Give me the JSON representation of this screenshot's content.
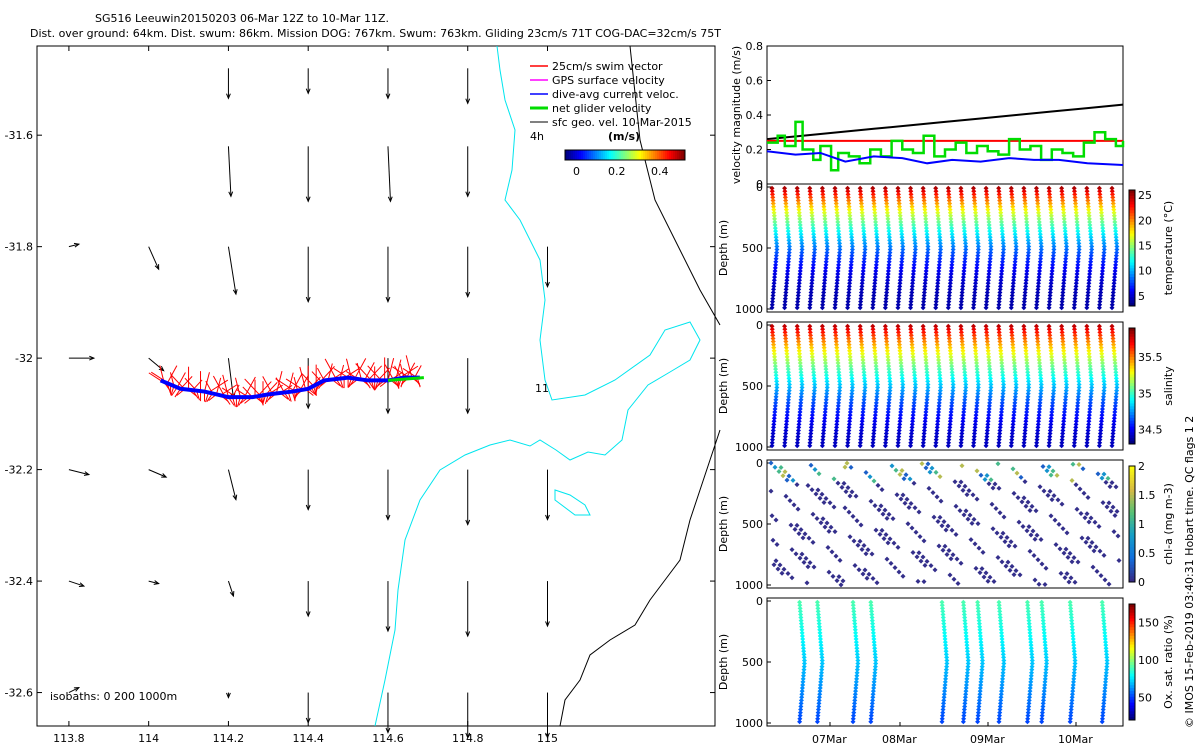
{
  "header": {
    "title_line1": "SG516 Leeuwin20150203 06-Mar 12Z to 10-Mar 11Z.",
    "title_line2": "Dist. over ground: 64km. Dist. swum: 86km. Mission DOG: 767km. Swum: 763km. Gliding 23cm/s 71T COG-DAC=32cm/s 75T"
  },
  "colors": {
    "swim": "#ff0000",
    "gps": "#ff00ff",
    "dac": "#0000ff",
    "net": "#00dd00",
    "sfc": "#000000",
    "coast": "#00e5ee",
    "isobath": "#000000"
  },
  "map": {
    "lon_range": [
      113.72,
      115.42
    ],
    "lat_range": [
      -32.66,
      -31.44
    ],
    "xticks": [
      113.8,
      114,
      114.2,
      114.4,
      114.6,
      114.8,
      115
    ],
    "yticks": [
      -31.6,
      -31.8,
      -32,
      -32.2,
      -32.4,
      -32.6
    ],
    "xtick_labels": [
      "113.8",
      "114",
      "114.2",
      "114.4",
      "114.6",
      "114.8",
      "115"
    ],
    "ytick_labels": [
      "-31.6",
      "-31.8",
      "-32",
      "-32.2",
      "-32.4",
      "-32.6"
    ],
    "legend": [
      {
        "label": "25cm/s swim vector",
        "color": "#ff0000"
      },
      {
        "label": "GPS surface velocity",
        "color": "#ff00ff"
      },
      {
        "label": "dive-avg current veloc.",
        "color": "#0000ff"
      },
      {
        "label": "net glider velocity",
        "color": "#00dd00"
      },
      {
        "label": "sfc geo. vel. 10-Mar-2015",
        "color": "#000000"
      }
    ],
    "time_step_label": "4h",
    "colorbar": {
      "unit": "(m/s)",
      "ticks": [
        "0",
        "0.2",
        "0.4"
      ],
      "range": [
        0,
        0.5
      ]
    },
    "isobaths_label": "isobaths: 0   200  1000m",
    "dive_marker_label": "11",
    "track": {
      "lon": [
        114.03,
        114.08,
        114.14,
        114.2,
        114.26,
        114.3,
        114.36,
        114.4,
        114.44,
        114.5,
        114.55,
        114.6,
        114.64,
        114.68
      ],
      "lat": [
        -32.04,
        -32.055,
        -32.06,
        -32.07,
        -32.07,
        -32.065,
        -32.06,
        -32.055,
        -32.04,
        -32.035,
        -32.04,
        -32.04,
        -32.035,
        -32.035
      ]
    },
    "sfc_vectors": [
      {
        "lon": 114.2,
        "lat": -31.48,
        "u": 0.0,
        "v": -0.12
      },
      {
        "lon": 114.4,
        "lat": -31.48,
        "u": 0.0,
        "v": -0.1
      },
      {
        "lon": 114.6,
        "lat": -31.48,
        "u": 0.0,
        "v": -0.12
      },
      {
        "lon": 114.8,
        "lat": -31.48,
        "u": 0.0,
        "v": -0.14
      },
      {
        "lon": 114.2,
        "lat": -31.62,
        "u": 0.01,
        "v": -0.2
      },
      {
        "lon": 114.4,
        "lat": -31.62,
        "u": 0.0,
        "v": -0.22
      },
      {
        "lon": 114.6,
        "lat": -31.62,
        "u": 0.01,
        "v": -0.22
      },
      {
        "lon": 114.8,
        "lat": -31.62,
        "u": 0.0,
        "v": -0.2
      },
      {
        "lon": 114.0,
        "lat": -31.8,
        "u": 0.04,
        "v": -0.09
      },
      {
        "lon": 114.2,
        "lat": -31.8,
        "u": 0.03,
        "v": -0.19
      },
      {
        "lon": 114.4,
        "lat": -31.8,
        "u": 0.0,
        "v": -0.22
      },
      {
        "lon": 114.6,
        "lat": -31.8,
        "u": 0.0,
        "v": -0.22
      },
      {
        "lon": 114.8,
        "lat": -31.8,
        "u": 0.0,
        "v": -0.2
      },
      {
        "lon": 115.0,
        "lat": -31.8,
        "u": 0.0,
        "v": -0.16
      },
      {
        "lon": 113.8,
        "lat": -31.8,
        "u": 0.04,
        "v": 0.01
      },
      {
        "lon": 114.0,
        "lat": -32.0,
        "u": 0.06,
        "v": -0.05
      },
      {
        "lon": 114.2,
        "lat": -32.0,
        "u": 0.02,
        "v": -0.16
      },
      {
        "lon": 114.4,
        "lat": -32.0,
        "u": 0.0,
        "v": -0.2
      },
      {
        "lon": 114.6,
        "lat": -32.0,
        "u": 0.0,
        "v": -0.22
      },
      {
        "lon": 114.8,
        "lat": -32.0,
        "u": 0.0,
        "v": -0.22
      },
      {
        "lon": 113.8,
        "lat": -32.0,
        "u": 0.1,
        "v": 0.0
      },
      {
        "lon": 114.0,
        "lat": -32.2,
        "u": 0.07,
        "v": -0.03
      },
      {
        "lon": 114.2,
        "lat": -32.2,
        "u": 0.03,
        "v": -0.12
      },
      {
        "lon": 114.4,
        "lat": -32.2,
        "u": 0.0,
        "v": -0.16
      },
      {
        "lon": 114.6,
        "lat": -32.2,
        "u": 0.0,
        "v": -0.2
      },
      {
        "lon": 114.8,
        "lat": -32.2,
        "u": 0.0,
        "v": -0.22
      },
      {
        "lon": 115.0,
        "lat": -32.2,
        "u": 0.0,
        "v": -0.2
      },
      {
        "lon": 113.8,
        "lat": -32.2,
        "u": 0.08,
        "v": -0.02
      },
      {
        "lon": 113.8,
        "lat": -32.4,
        "u": 0.06,
        "v": -0.02
      },
      {
        "lon": 114.0,
        "lat": -32.4,
        "u": 0.04,
        "v": -0.01
      },
      {
        "lon": 114.2,
        "lat": -32.4,
        "u": 0.02,
        "v": -0.06
      },
      {
        "lon": 114.4,
        "lat": -32.4,
        "u": 0.0,
        "v": -0.14
      },
      {
        "lon": 114.6,
        "lat": -32.4,
        "u": 0.0,
        "v": -0.2
      },
      {
        "lon": 114.8,
        "lat": -32.4,
        "u": 0.0,
        "v": -0.22
      },
      {
        "lon": 115.0,
        "lat": -32.4,
        "u": 0.0,
        "v": -0.18
      },
      {
        "lon": 113.8,
        "lat": -32.6,
        "u": 0.04,
        "v": 0.02
      },
      {
        "lon": 114.2,
        "lat": -32.6,
        "u": 0.0,
        "v": -0.02
      },
      {
        "lon": 114.4,
        "lat": -32.6,
        "u": 0.0,
        "v": -0.12
      },
      {
        "lon": 114.6,
        "lat": -32.6,
        "u": 0.0,
        "v": -0.16
      },
      {
        "lon": 114.8,
        "lat": -32.6,
        "u": 0.0,
        "v": -0.18
      },
      {
        "lon": 115.0,
        "lat": -32.6,
        "u": 0.0,
        "v": -0.18
      }
    ]
  },
  "chart_data": [
    {
      "type": "line",
      "title": "",
      "ylabel": "velocity magnitude (m/s)",
      "ylim": [
        0,
        0.8
      ],
      "yticks": [
        "0",
        "0.2",
        "0.4",
        "0.6",
        "0.8"
      ],
      "xlim": [
        0,
        100
      ],
      "series": [
        {
          "name": "sfc geo / model",
          "color": "#000000",
          "x": [
            0,
            10,
            20,
            30,
            40,
            50,
            60,
            70,
            80,
            90,
            100
          ],
          "y": [
            0.26,
            0.28,
            0.3,
            0.32,
            0.34,
            0.36,
            0.38,
            0.4,
            0.42,
            0.44,
            0.46
          ]
        },
        {
          "name": "swim 25cm/s",
          "color": "#ff0000",
          "x": [
            0,
            100
          ],
          "y": [
            0.25,
            0.25
          ]
        },
        {
          "name": "net glider velocity",
          "color": "#00dd00",
          "x": [
            0,
            3,
            5,
            8,
            10,
            13,
            15,
            18,
            20,
            23,
            26,
            29,
            32,
            35,
            38,
            41,
            44,
            47,
            50,
            53,
            56,
            59,
            62,
            65,
            68,
            71,
            74,
            77,
            80,
            83,
            86,
            89,
            92,
            95,
            98,
            100
          ],
          "y": [
            0.24,
            0.28,
            0.22,
            0.36,
            0.2,
            0.14,
            0.22,
            0.08,
            0.18,
            0.16,
            0.12,
            0.2,
            0.16,
            0.25,
            0.2,
            0.18,
            0.28,
            0.16,
            0.2,
            0.24,
            0.18,
            0.22,
            0.19,
            0.17,
            0.26,
            0.2,
            0.22,
            0.14,
            0.2,
            0.18,
            0.16,
            0.24,
            0.3,
            0.26,
            0.22,
            0.25
          ]
        },
        {
          "name": "dive-avg current",
          "color": "#0000ff",
          "x": [
            0,
            8,
            15,
            22,
            30,
            38,
            45,
            52,
            60,
            68,
            75,
            82,
            90,
            100
          ],
          "y": [
            0.19,
            0.17,
            0.18,
            0.13,
            0.16,
            0.15,
            0.12,
            0.14,
            0.13,
            0.15,
            0.14,
            0.14,
            0.12,
            0.11
          ]
        }
      ]
    },
    {
      "type": "scatter",
      "ylabel": "Depth (m)",
      "yticks": [
        "0",
        "500",
        "1000"
      ],
      "ylim": [
        0,
        1000
      ],
      "colorbar_label": "temperature (°C)",
      "colorbar_ticks": [
        "25",
        "20",
        "15",
        "10",
        "5"
      ],
      "colorbar_range": [
        3,
        26
      ],
      "profiles": 28,
      "surface_value": 25,
      "bottom_value": 4
    },
    {
      "type": "scatter",
      "ylabel": "Depth (m)",
      "yticks": [
        "0",
        "500",
        "1000"
      ],
      "ylim": [
        0,
        1000
      ],
      "colorbar_label": "salinity",
      "colorbar_ticks": [
        "35.5",
        "35",
        "34.5"
      ],
      "colorbar_range": [
        34.3,
        35.9
      ],
      "profiles": 28,
      "surface_value": 35.8,
      "bottom_value": 34.4
    },
    {
      "type": "scatter",
      "ylabel": "Depth (m)",
      "yticks": [
        "0",
        "500",
        "1000"
      ],
      "ylim": [
        0,
        1000
      ],
      "colorbar_label": "chl-a (mg m-3)",
      "colorbar_ticks": [
        "2",
        "1.5",
        "1",
        "0.5",
        "0"
      ],
      "colorbar_range": [
        0,
        2
      ],
      "profiles": 28,
      "surface_value": 0.3,
      "bottom_value": 0
    },
    {
      "type": "scatter",
      "ylabel": "Depth (m)",
      "yticks": [
        "0",
        "500",
        "1000"
      ],
      "ylim": [
        0,
        1000
      ],
      "colorbar_label": "Ox. sat. ratio (%)",
      "colorbar_ticks": [
        "150",
        "100",
        "50"
      ],
      "colorbar_range": [
        20,
        175
      ],
      "profiles": 12,
      "surface_value": 90,
      "bottom_value": 40
    }
  ],
  "time_axis": {
    "labels": [
      "07Mar",
      "08Mar",
      "09Mar",
      "10Mar"
    ]
  },
  "credit": "© IMOS 15-Feb-2019 03:40:31 Hobart time. QC flags 1  2"
}
